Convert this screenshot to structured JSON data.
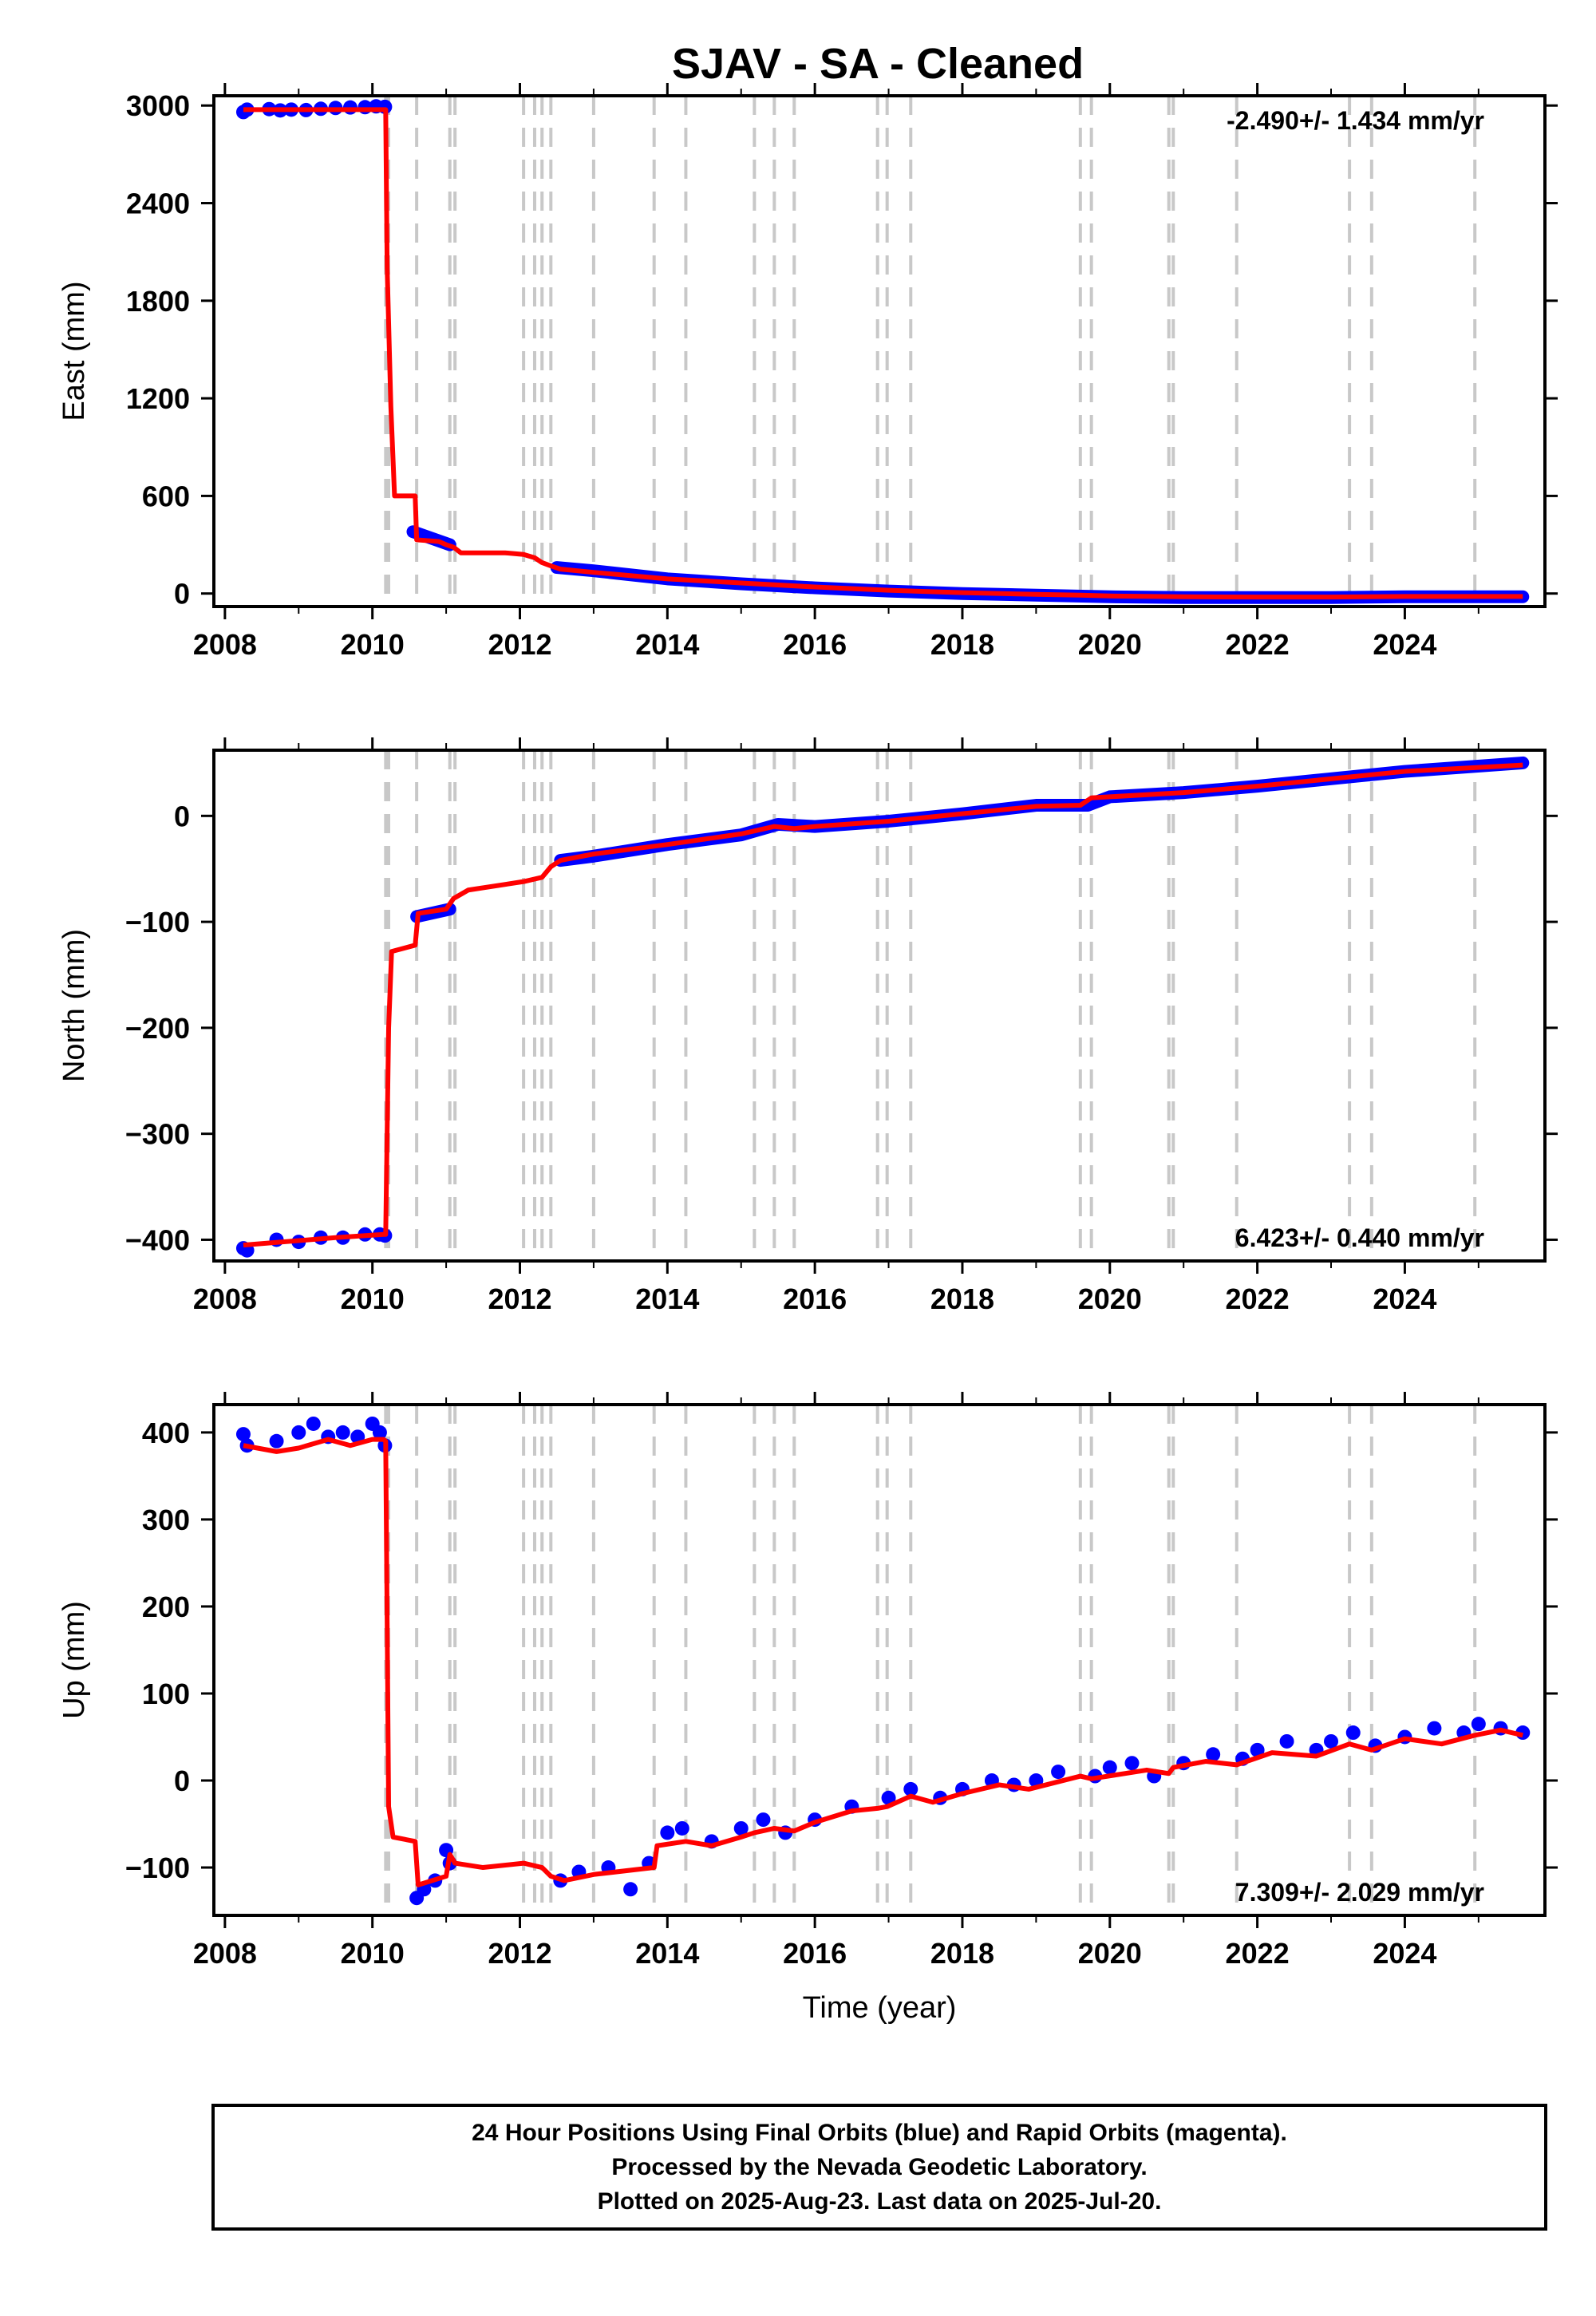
{
  "title": "SJAV  - SA - Cleaned",
  "info_lines": [
    "24 Hour Positions Using Final Orbits (blue) and Rapid Orbits (magenta).",
    "Processed by the Nevada Geodetic Laboratory.",
    "Plotted on 2025-Aug-23. Last data on 2025-Jul-20."
  ],
  "colors": {
    "data": "#0000ff",
    "model": "#ff0000",
    "steps": "#c8c8c8",
    "frame": "#000000"
  },
  "chart_data": [
    {
      "type": "scatter",
      "name_key": "east",
      "ylabel": "East (mm)",
      "xlabel": "",
      "xlim": [
        2007.85,
        2025.9
      ],
      "ylim": [
        -80,
        3060
      ],
      "xticks": [
        2008,
        2010,
        2012,
        2014,
        2016,
        2018,
        2020,
        2022,
        2024
      ],
      "yticks": [
        0,
        600,
        1200,
        1800,
        2400,
        3000
      ],
      "rate_label": "-2.490+/- 1.434 mm/yr",
      "rate_position": "top-right",
      "step_lines": [
        2010.18,
        2010.22,
        2010.6,
        2011.05,
        2011.12,
        2012.05,
        2012.2,
        2012.3,
        2012.42,
        2013.0,
        2013.82,
        2014.25,
        2015.18,
        2015.45,
        2015.72,
        2016.85,
        2016.98,
        2017.3,
        2019.6,
        2019.75,
        2020.8,
        2020.86,
        2021.72,
        2023.25,
        2023.55,
        2024.95
      ],
      "data_points": [
        [
          2008.25,
          2960
        ],
        [
          2008.3,
          2975
        ],
        [
          2008.6,
          2978
        ],
        [
          2008.75,
          2970
        ],
        [
          2008.9,
          2975
        ],
        [
          2009.1,
          2972
        ],
        [
          2009.3,
          2980
        ],
        [
          2009.5,
          2985
        ],
        [
          2009.7,
          2988
        ],
        [
          2009.9,
          2990
        ],
        [
          2010.05,
          2995
        ],
        [
          2010.17,
          2992
        ]
      ],
      "data_segments": [
        [
          [
            2010.55,
            380
          ],
          [
            2011.05,
            300
          ]
        ],
        [
          [
            2012.5,
            160
          ],
          [
            2013.0,
            140
          ],
          [
            2014.0,
            90
          ],
          [
            2015.0,
            60
          ],
          [
            2016.0,
            35
          ],
          [
            2017.0,
            15
          ],
          [
            2018.0,
            0
          ],
          [
            2019.0,
            -10
          ],
          [
            2020.0,
            -20
          ],
          [
            2021.0,
            -25
          ],
          [
            2022.0,
            -25
          ],
          [
            2023.0,
            -25
          ],
          [
            2024.0,
            -20
          ],
          [
            2025.6,
            -20
          ]
        ]
      ],
      "model": [
        [
          2008.25,
          2975
        ],
        [
          2010.15,
          2975
        ],
        [
          2010.18,
          2975
        ],
        [
          2010.2,
          2000
        ],
        [
          2010.25,
          1150
        ],
        [
          2010.3,
          600
        ],
        [
          2010.58,
          600
        ],
        [
          2010.6,
          330
        ],
        [
          2010.9,
          320
        ],
        [
          2011.0,
          300
        ],
        [
          2011.1,
          285
        ],
        [
          2011.2,
          250
        ],
        [
          2011.8,
          250
        ],
        [
          2012.05,
          240
        ],
        [
          2012.2,
          220
        ],
        [
          2012.3,
          190
        ],
        [
          2012.42,
          170
        ],
        [
          2012.55,
          150
        ],
        [
          2013.0,
          130
        ],
        [
          2014.0,
          90
        ],
        [
          2015.0,
          65
        ],
        [
          2016.0,
          40
        ],
        [
          2017.0,
          20
        ],
        [
          2018.0,
          5
        ],
        [
          2019.0,
          -5
        ],
        [
          2019.6,
          -10
        ],
        [
          2020.0,
          -15
        ],
        [
          2021.0,
          -20
        ],
        [
          2022.0,
          -22
        ],
        [
          2023.0,
          -22
        ],
        [
          2024.0,
          -18
        ],
        [
          2025.6,
          -18
        ]
      ]
    },
    {
      "type": "scatter",
      "name_key": "north",
      "ylabel": "North (mm)",
      "xlabel": "",
      "xlim": [
        2007.85,
        2025.9
      ],
      "ylim": [
        -420,
        62
      ],
      "xticks": [
        2008,
        2010,
        2012,
        2014,
        2016,
        2018,
        2020,
        2022,
        2024
      ],
      "yticks": [
        -400,
        -300,
        -200,
        -100,
        0
      ],
      "rate_label": "6.423+/- 0.440 mm/yr",
      "rate_position": "bottom-right",
      "step_lines": [
        2010.18,
        2010.22,
        2010.6,
        2011.05,
        2011.12,
        2012.05,
        2012.2,
        2012.3,
        2012.42,
        2013.0,
        2013.82,
        2014.25,
        2015.18,
        2015.45,
        2015.72,
        2016.85,
        2016.98,
        2017.3,
        2019.6,
        2019.75,
        2020.8,
        2020.86,
        2021.72,
        2023.25,
        2023.55,
        2024.95
      ],
      "data_points": [
        [
          2008.25,
          -408
        ],
        [
          2008.3,
          -410
        ],
        [
          2008.7,
          -400
        ],
        [
          2009.0,
          -402
        ],
        [
          2009.3,
          -398
        ],
        [
          2009.6,
          -398
        ],
        [
          2009.9,
          -395
        ],
        [
          2010.1,
          -395
        ],
        [
          2010.17,
          -396
        ]
      ],
      "data_segments": [
        [
          [
            2010.6,
            -95
          ],
          [
            2011.05,
            -88
          ]
        ],
        [
          [
            2012.55,
            -42
          ],
          [
            2013.0,
            -38
          ],
          [
            2014.0,
            -27
          ],
          [
            2015.0,
            -18
          ],
          [
            2015.5,
            -8
          ],
          [
            2016.0,
            -10
          ],
          [
            2017.0,
            -5
          ],
          [
            2018.0,
            2
          ],
          [
            2019.0,
            10
          ],
          [
            2019.7,
            10
          ],
          [
            2020.0,
            18
          ],
          [
            2021.0,
            22
          ],
          [
            2022.0,
            28
          ],
          [
            2023.0,
            35
          ],
          [
            2024.0,
            42
          ],
          [
            2025.6,
            50
          ]
        ]
      ],
      "model": [
        [
          2008.25,
          -405
        ],
        [
          2009.5,
          -398
        ],
        [
          2010.15,
          -395
        ],
        [
          2010.18,
          -395
        ],
        [
          2010.22,
          -200
        ],
        [
          2010.26,
          -128
        ],
        [
          2010.58,
          -122
        ],
        [
          2010.62,
          -92
        ],
        [
          2011.0,
          -88
        ],
        [
          2011.1,
          -78
        ],
        [
          2011.3,
          -70
        ],
        [
          2012.05,
          -62
        ],
        [
          2012.3,
          -58
        ],
        [
          2012.42,
          -48
        ],
        [
          2012.55,
          -42
        ],
        [
          2013.0,
          -36
        ],
        [
          2014.0,
          -27
        ],
        [
          2015.0,
          -17
        ],
        [
          2015.45,
          -10
        ],
        [
          2015.72,
          -12
        ],
        [
          2016.0,
          -10
        ],
        [
          2017.0,
          -5
        ],
        [
          2018.0,
          2
        ],
        [
          2019.0,
          9
        ],
        [
          2019.6,
          10
        ],
        [
          2019.75,
          17
        ],
        [
          2020.0,
          18
        ],
        [
          2021.0,
          22
        ],
        [
          2022.0,
          28
        ],
        [
          2023.0,
          35
        ],
        [
          2024.0,
          42
        ],
        [
          2025.6,
          48
        ]
      ]
    },
    {
      "type": "scatter",
      "name_key": "up",
      "ylabel": "Up (mm)",
      "xlabel": "Time (year)",
      "xlim": [
        2007.85,
        2025.9
      ],
      "ylim": [
        -155,
        432
      ],
      "xticks": [
        2008,
        2010,
        2012,
        2014,
        2016,
        2018,
        2020,
        2022,
        2024
      ],
      "yticks": [
        -100,
        0,
        100,
        200,
        300,
        400
      ],
      "rate_label": "7.309+/- 2.029 mm/yr",
      "rate_position": "bottom-right",
      "step_lines": [
        2010.18,
        2010.22,
        2010.6,
        2011.05,
        2011.12,
        2012.05,
        2012.2,
        2012.3,
        2012.42,
        2013.0,
        2013.82,
        2014.25,
        2015.18,
        2015.45,
        2015.72,
        2016.85,
        2016.98,
        2017.3,
        2019.6,
        2019.75,
        2020.8,
        2020.86,
        2021.72,
        2023.25,
        2023.55,
        2024.95
      ],
      "data_points": [
        [
          2008.25,
          398
        ],
        [
          2008.3,
          385
        ],
        [
          2008.7,
          390
        ],
        [
          2009.0,
          400
        ],
        [
          2009.2,
          410
        ],
        [
          2009.4,
          395
        ],
        [
          2009.6,
          400
        ],
        [
          2009.8,
          395
        ],
        [
          2010.0,
          410
        ],
        [
          2010.1,
          400
        ],
        [
          2010.17,
          385
        ],
        [
          2010.6,
          -135
        ],
        [
          2010.7,
          -125
        ],
        [
          2010.85,
          -115
        ],
        [
          2011.05,
          -95
        ],
        [
          2011.0,
          -80
        ],
        [
          2012.55,
          -115
        ],
        [
          2012.8,
          -105
        ],
        [
          2013.2,
          -100
        ],
        [
          2013.5,
          -125
        ],
        [
          2013.75,
          -95
        ],
        [
          2014.0,
          -60
        ],
        [
          2014.2,
          -55
        ],
        [
          2014.6,
          -70
        ],
        [
          2015.0,
          -55
        ],
        [
          2015.3,
          -45
        ],
        [
          2015.6,
          -60
        ],
        [
          2016.0,
          -45
        ],
        [
          2016.5,
          -30
        ],
        [
          2017.0,
          -20
        ],
        [
          2017.3,
          -10
        ],
        [
          2017.7,
          -20
        ],
        [
          2018.0,
          -10
        ],
        [
          2018.4,
          0
        ],
        [
          2018.7,
          -5
        ],
        [
          2019.0,
          0
        ],
        [
          2019.3,
          10
        ],
        [
          2019.8,
          5
        ],
        [
          2020.0,
          15
        ],
        [
          2020.3,
          20
        ],
        [
          2020.6,
          5
        ],
        [
          2021.0,
          20
        ],
        [
          2021.4,
          30
        ],
        [
          2021.8,
          25
        ],
        [
          2022.0,
          35
        ],
        [
          2022.4,
          45
        ],
        [
          2022.8,
          35
        ],
        [
          2023.0,
          45
        ],
        [
          2023.3,
          55
        ],
        [
          2023.6,
          40
        ],
        [
          2024.0,
          50
        ],
        [
          2024.4,
          60
        ],
        [
          2024.8,
          55
        ],
        [
          2025.0,
          65
        ],
        [
          2025.3,
          60
        ],
        [
          2025.6,
          55
        ]
      ],
      "data_segments": [],
      "model": [
        [
          2008.25,
          385
        ],
        [
          2008.7,
          378
        ],
        [
          2009.0,
          382
        ],
        [
          2009.4,
          392
        ],
        [
          2009.7,
          385
        ],
        [
          2010.0,
          392
        ],
        [
          2010.15,
          392
        ],
        [
          2010.18,
          390
        ],
        [
          2010.22,
          -30
        ],
        [
          2010.28,
          -65
        ],
        [
          2010.58,
          -70
        ],
        [
          2010.62,
          -120
        ],
        [
          2011.0,
          -110
        ],
        [
          2011.05,
          -85
        ],
        [
          2011.12,
          -95
        ],
        [
          2011.5,
          -100
        ],
        [
          2012.05,
          -95
        ],
        [
          2012.3,
          -100
        ],
        [
          2012.42,
          -110
        ],
        [
          2012.6,
          -115
        ],
        [
          2013.0,
          -108
        ],
        [
          2013.82,
          -100
        ],
        [
          2013.86,
          -75
        ],
        [
          2014.25,
          -70
        ],
        [
          2014.6,
          -75
        ],
        [
          2015.0,
          -65
        ],
        [
          2015.18,
          -60
        ],
        [
          2015.45,
          -55
        ],
        [
          2015.72,
          -58
        ],
        [
          2016.0,
          -48
        ],
        [
          2016.5,
          -35
        ],
        [
          2016.85,
          -32
        ],
        [
          2016.98,
          -30
        ],
        [
          2017.3,
          -18
        ],
        [
          2017.6,
          -25
        ],
        [
          2018.0,
          -15
        ],
        [
          2018.5,
          -5
        ],
        [
          2018.9,
          -10
        ],
        [
          2019.6,
          5
        ],
        [
          2019.75,
          2
        ],
        [
          2020.2,
          8
        ],
        [
          2020.5,
          12
        ],
        [
          2020.8,
          8
        ],
        [
          2020.86,
          15
        ],
        [
          2021.3,
          22
        ],
        [
          2021.72,
          18
        ],
        [
          2022.2,
          32
        ],
        [
          2022.8,
          28
        ],
        [
          2023.25,
          42
        ],
        [
          2023.55,
          35
        ],
        [
          2024.0,
          48
        ],
        [
          2024.5,
          42
        ],
        [
          2024.95,
          52
        ],
        [
          2025.3,
          58
        ],
        [
          2025.6,
          52
        ]
      ]
    }
  ]
}
